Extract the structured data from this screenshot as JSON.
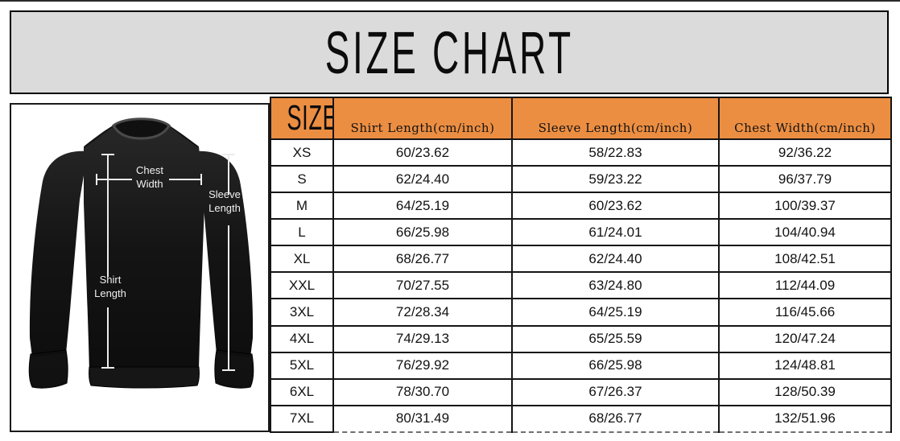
{
  "title": "SIZE CHART",
  "colors": {
    "header_orange": "#ec8e42",
    "banner_gray": "#dbdbdb",
    "border_black": "#151515",
    "shirt_black": "#141414",
    "measure_line_white": "#ececec"
  },
  "diagram": {
    "garment": "crewneck-sweatshirt",
    "labels": {
      "chest": "Chest Width",
      "sleeve": "Sleeve Length",
      "shirt": "Shirt Length"
    }
  },
  "chart_data": {
    "type": "table",
    "title": "SIZE CHART",
    "columns": [
      "SIZE",
      "Shirt Length(cm/inch)",
      "Sleeve Length(cm/inch)",
      "Chest Width(cm/inch)"
    ],
    "rows": [
      [
        "XS",
        "60/23.62",
        "58/22.83",
        "92/36.22"
      ],
      [
        "S",
        "62/24.40",
        "59/23.22",
        "96/37.79"
      ],
      [
        "M",
        "64/25.19",
        "60/23.62",
        "100/39.37"
      ],
      [
        "L",
        "66/25.98",
        "61/24.01",
        "104/40.94"
      ],
      [
        "XL",
        "68/26.77",
        "62/24.40",
        "108/42.51"
      ],
      [
        "XXL",
        "70/27.55",
        "63/24.80",
        "112/44.09"
      ],
      [
        "3XL",
        "72/28.34",
        "64/25.19",
        "116/45.66"
      ],
      [
        "4XL",
        "74/29.13",
        "65/25.59",
        "120/47.24"
      ],
      [
        "5XL",
        "76/29.92",
        "66/25.98",
        "124/48.81"
      ],
      [
        "6XL",
        "78/30.70",
        "67/26.37",
        "128/50.39"
      ],
      [
        "7XL",
        "80/31.49",
        "68/26.77",
        "132/51.96"
      ]
    ]
  }
}
